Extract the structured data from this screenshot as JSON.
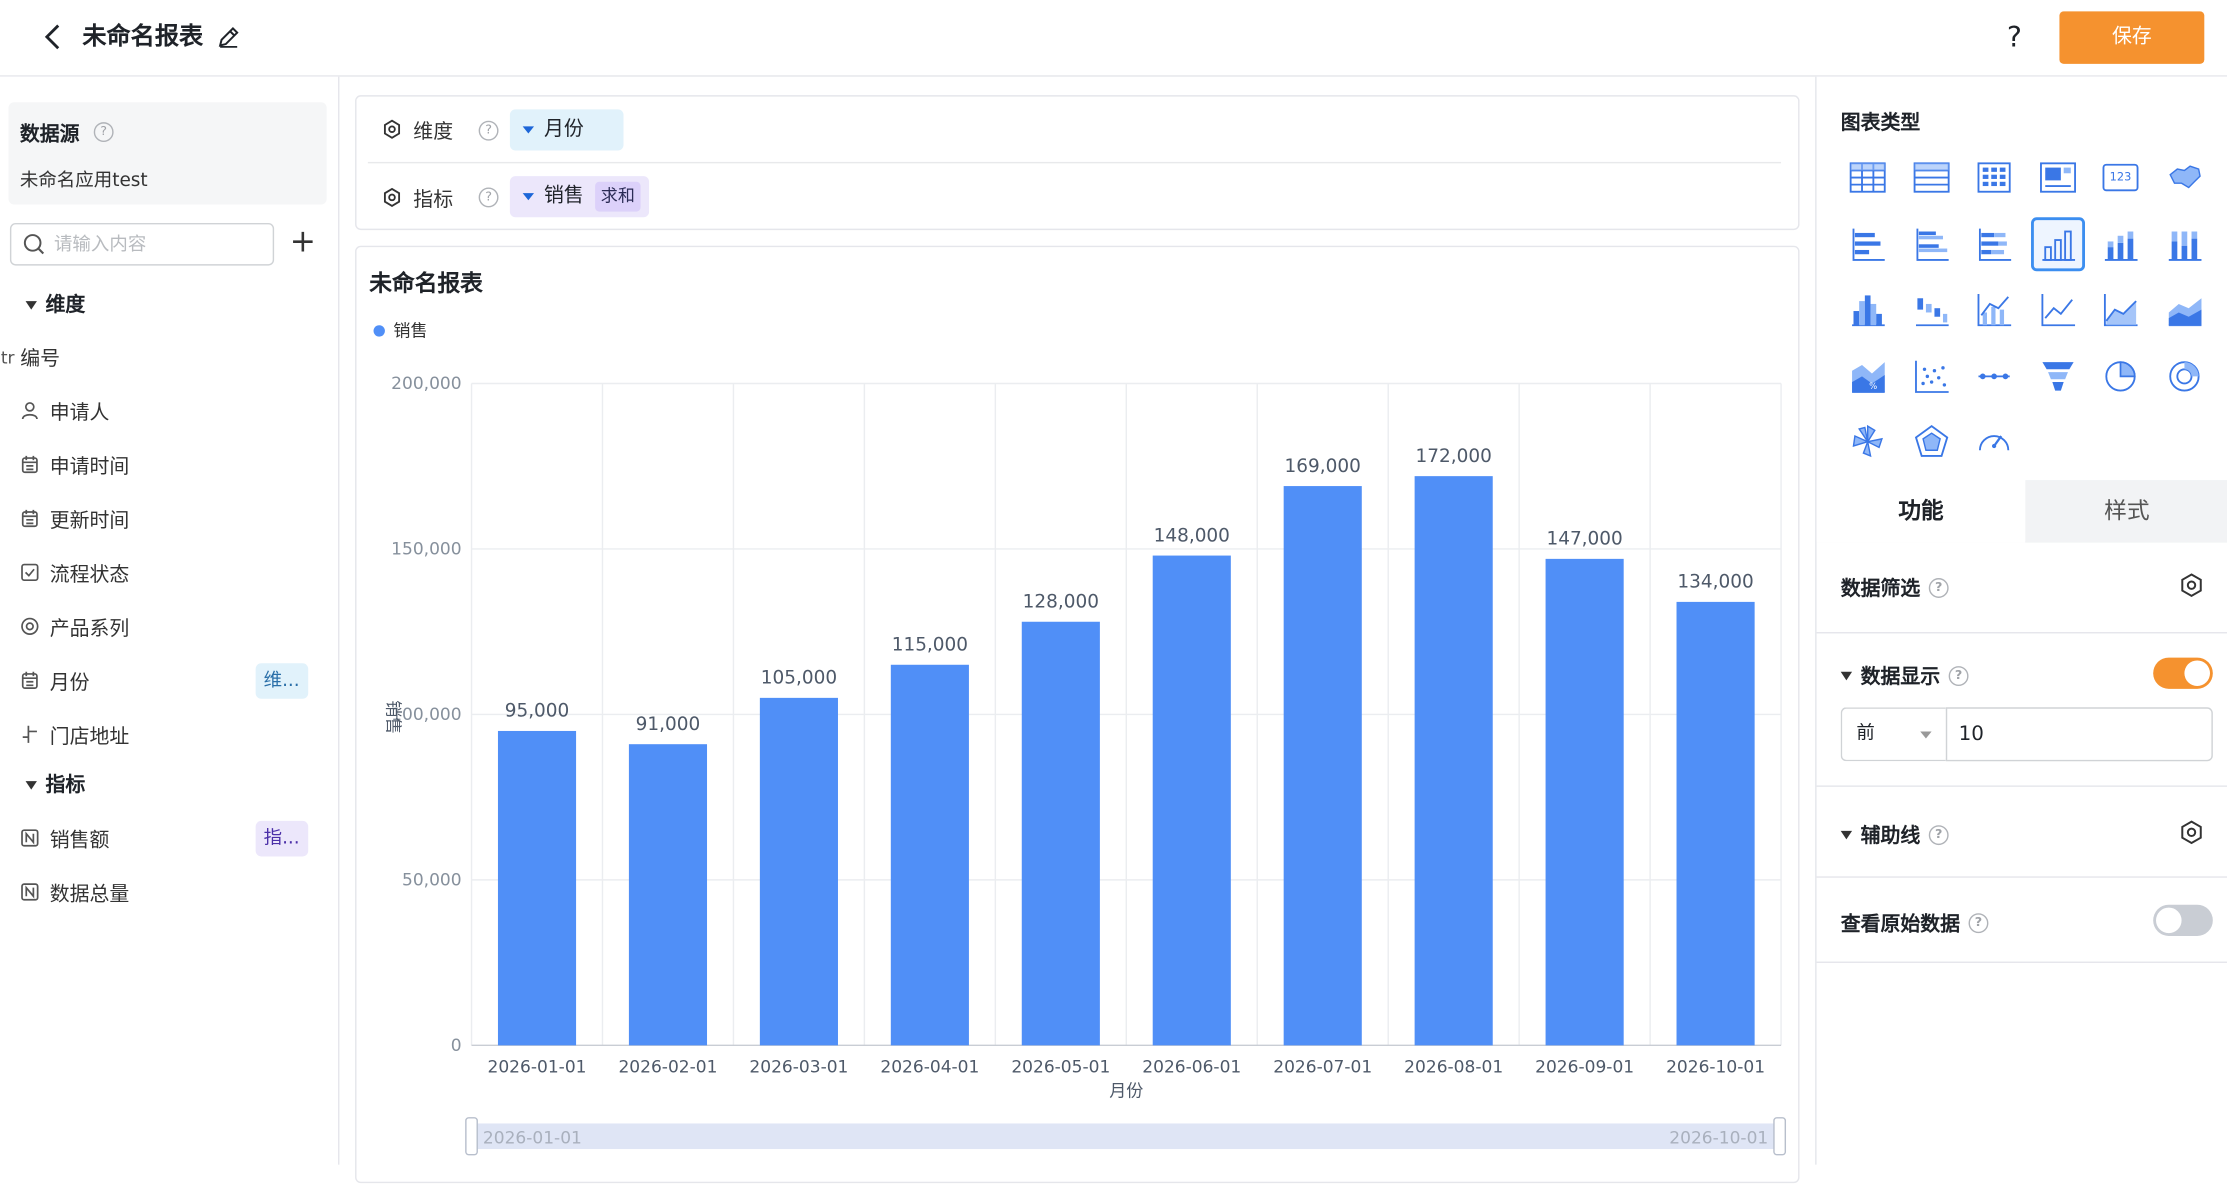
{
  "header": {
    "title": "未命名报表",
    "help": "?",
    "save_label": "保存"
  },
  "left": {
    "datasource_label": "数据源",
    "datasource_name": "未命名应用test",
    "search_placeholder": "请输入内容",
    "dimension_group": "维度",
    "metric_group": "指标",
    "dimension_fields": [
      {
        "prefix": "Str",
        "label": "编号",
        "icon": "string-type-icon"
      },
      {
        "label": "申请人",
        "icon": "user-icon"
      },
      {
        "label": "申请时间",
        "icon": "calendar-icon"
      },
      {
        "label": "更新时间",
        "icon": "calendar-icon"
      },
      {
        "label": "流程状态",
        "icon": "checkbox-icon"
      },
      {
        "label": "产品系列",
        "icon": "radio-icon"
      },
      {
        "label": "月份",
        "icon": "calendar-icon",
        "tag": "维..."
      },
      {
        "label": "门店地址",
        "icon": "location-icon"
      }
    ],
    "metric_fields": [
      {
        "label": "销售额",
        "icon": "number-type-icon",
        "tag": "指..."
      },
      {
        "label": "数据总量",
        "icon": "number-type-icon"
      }
    ]
  },
  "config": {
    "dimension_label": "维度",
    "dimension_value": "月份",
    "metric_label": "指标",
    "metric_value": "销售",
    "metric_agg": "求和"
  },
  "chart_card": {
    "title": "未命名报表",
    "slider_start": "2026-01-01",
    "slider_end": "2026-10-01"
  },
  "chart_data": {
    "type": "bar",
    "title": "未命名报表",
    "categories": [
      "2026-01-01",
      "2026-02-01",
      "2026-03-01",
      "2026-04-01",
      "2026-05-01",
      "2026-06-01",
      "2026-07-01",
      "2026-08-01",
      "2026-09-01",
      "2026-10-01"
    ],
    "series": [
      {
        "name": "销售",
        "values": [
          95000,
          91000,
          105000,
          115000,
          128000,
          148000,
          169000,
          172000,
          147000,
          134000
        ],
        "color": "#508ff7"
      }
    ],
    "data_labels": [
      "95,000",
      "91,000",
      "105,000",
      "115,000",
      "128,000",
      "148,000",
      "169,000",
      "172,000",
      "147,000",
      "134,000"
    ],
    "y_ticks": [
      0,
      50000,
      100000,
      150000,
      200000
    ],
    "y_tick_labels": [
      "0",
      "50,000",
      "100,000",
      "150,000",
      "200,000"
    ],
    "xlabel": "月份",
    "ylabel": "销售",
    "ylim": [
      0,
      200000
    ],
    "grid": true,
    "legend": "top-left"
  },
  "right": {
    "chart_type_title": "图表类型",
    "chart_types": [
      "table-icon",
      "detail-table-icon",
      "pivot-table-icon",
      "card-table-icon",
      "kpi-number-icon",
      "map-icon",
      "horizontal-bar-icon",
      "grouped-horizontal-bar-icon",
      "stacked-horizontal-bar-icon",
      "column-chart-icon",
      "stacked-column-icon",
      "percent-column-icon",
      "histogram-icon",
      "waterfall-icon",
      "bar-line-combo-icon",
      "line-chart-icon",
      "area-chart-icon",
      "stacked-area-icon",
      "percent-area-icon",
      "scatter-icon",
      "dot-line-icon",
      "funnel-icon",
      "pie-chart-icon",
      "donut-chart-icon",
      "rose-chart-icon",
      "radar-chart-icon",
      "gauge-icon"
    ],
    "selected_chart_type": "column-chart-icon",
    "tab_function": "功能",
    "tab_style": "样式",
    "data_filter_label": "数据筛选",
    "data_display_label": "数据显示",
    "data_display_on": true,
    "top_select": "前",
    "top_value": "10",
    "aux_line_label": "辅助线",
    "raw_data_label": "查看原始数据",
    "raw_data_on": false,
    "accent_color": "#f5922f"
  }
}
